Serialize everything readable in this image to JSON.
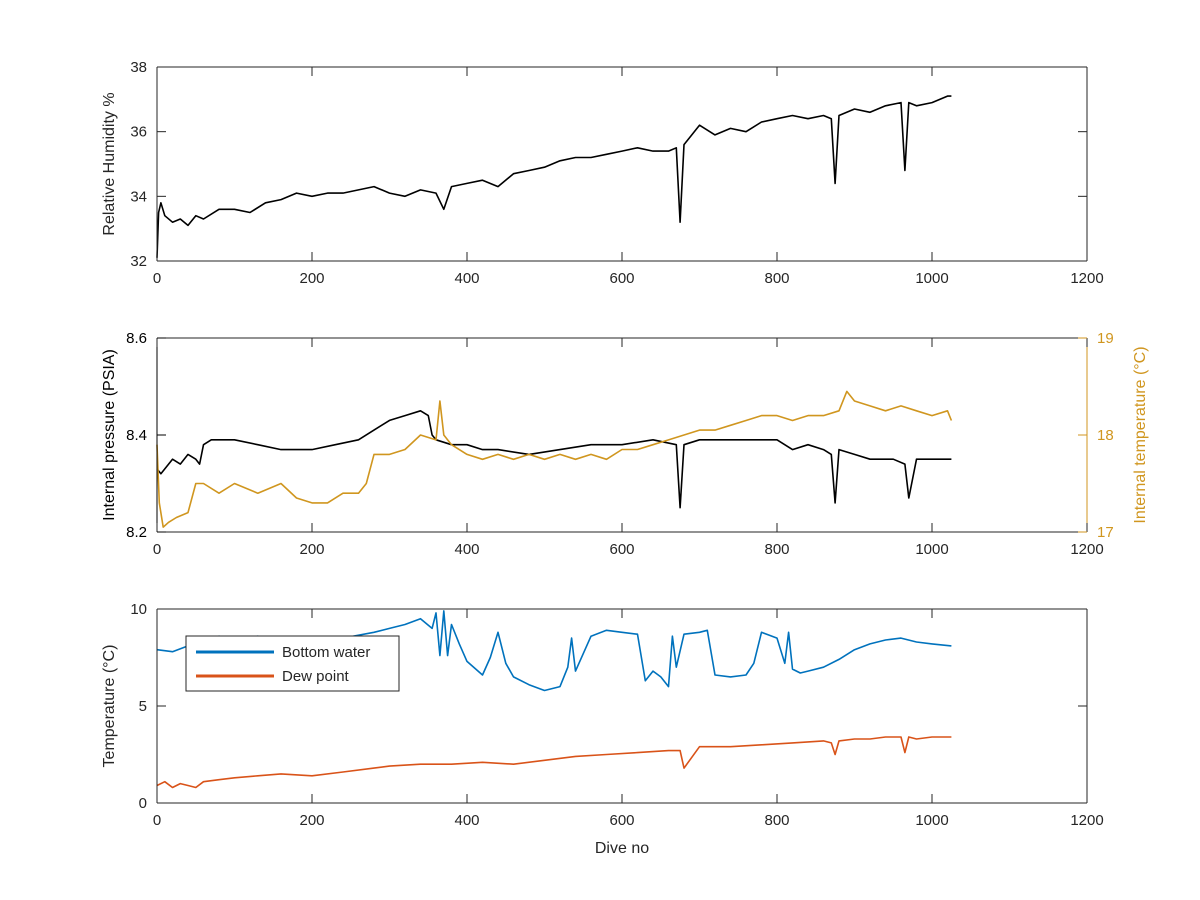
{
  "chart_data": [
    {
      "type": "line",
      "xlabel": "",
      "ylabel": "Relative Humidity %",
      "xlim": [
        0,
        1200
      ],
      "ylim": [
        32,
        38
      ],
      "xticks": [
        0,
        200,
        400,
        600,
        800,
        1000,
        1200
      ],
      "yticks": [
        32,
        34,
        36,
        38
      ],
      "grid": false,
      "series": [
        {
          "color": "#000000",
          "x": [
            0,
            2,
            5,
            10,
            20,
            30,
            40,
            50,
            60,
            80,
            100,
            120,
            140,
            160,
            180,
            200,
            220,
            240,
            260,
            280,
            300,
            320,
            340,
            360,
            370,
            380,
            400,
            420,
            440,
            460,
            480,
            500,
            520,
            540,
            560,
            580,
            600,
            620,
            640,
            660,
            670,
            675,
            680,
            690,
            700,
            720,
            740,
            760,
            780,
            800,
            820,
            840,
            860,
            870,
            875,
            880,
            900,
            920,
            940,
            960,
            965,
            970,
            980,
            1000,
            1020,
            1025
          ],
          "y": [
            32.1,
            33.5,
            33.8,
            33.4,
            33.2,
            33.3,
            33.1,
            33.4,
            33.3,
            33.6,
            33.6,
            33.5,
            33.8,
            33.9,
            34.1,
            34.0,
            34.1,
            34.1,
            34.2,
            34.3,
            34.1,
            34.0,
            34.2,
            34.1,
            33.6,
            34.3,
            34.4,
            34.5,
            34.3,
            34.7,
            34.8,
            34.9,
            35.1,
            35.2,
            35.2,
            35.3,
            35.4,
            35.5,
            35.4,
            35.4,
            35.5,
            33.2,
            35.6,
            35.9,
            36.2,
            35.9,
            36.1,
            36.0,
            36.3,
            36.4,
            36.5,
            36.4,
            36.5,
            36.4,
            34.4,
            36.5,
            36.7,
            36.6,
            36.8,
            36.9,
            34.8,
            36.9,
            36.8,
            36.9,
            37.1,
            37.1
          ]
        }
      ]
    },
    {
      "type": "line",
      "xlabel": "",
      "ylabel": "Internal pressure (PSIA)",
      "y2label": "Internal temperature (°C)",
      "xlim": [
        0,
        1200
      ],
      "ylim": [
        8.2,
        8.6
      ],
      "y2lim": [
        17,
        19
      ],
      "xticks": [
        0,
        200,
        400,
        600,
        800,
        1000,
        1200
      ],
      "yticks": [
        8.2,
        8.4,
        8.6
      ],
      "y2ticks": [
        17,
        18,
        19
      ],
      "grid": false,
      "series": [
        {
          "axis": "left",
          "color": "#000000",
          "x": [
            0,
            5,
            10,
            20,
            30,
            40,
            50,
            55,
            60,
            70,
            100,
            130,
            160,
            200,
            230,
            260,
            280,
            300,
            320,
            340,
            350,
            355,
            360,
            380,
            400,
            420,
            440,
            480,
            520,
            560,
            600,
            640,
            670,
            675,
            680,
            700,
            740,
            780,
            800,
            820,
            840,
            860,
            870,
            875,
            880,
            900,
            920,
            950,
            965,
            970,
            980,
            1000,
            1025
          ],
          "y": [
            8.33,
            8.32,
            8.33,
            8.35,
            8.34,
            8.36,
            8.35,
            8.34,
            8.38,
            8.39,
            8.39,
            8.38,
            8.37,
            8.37,
            8.38,
            8.39,
            8.41,
            8.43,
            8.44,
            8.45,
            8.44,
            8.4,
            8.39,
            8.38,
            8.38,
            8.37,
            8.37,
            8.36,
            8.37,
            8.38,
            8.38,
            8.39,
            8.38,
            8.25,
            8.38,
            8.39,
            8.39,
            8.39,
            8.39,
            8.37,
            8.38,
            8.37,
            8.36,
            8.26,
            8.37,
            8.36,
            8.35,
            8.35,
            8.34,
            8.27,
            8.35,
            8.35,
            8.35
          ]
        },
        {
          "axis": "right",
          "color": "#D0961F",
          "x": [
            0,
            3,
            8,
            15,
            25,
            40,
            50,
            60,
            80,
            100,
            130,
            160,
            180,
            200,
            220,
            240,
            260,
            270,
            280,
            300,
            320,
            340,
            360,
            365,
            370,
            380,
            400,
            420,
            440,
            460,
            480,
            500,
            520,
            540,
            560,
            580,
            600,
            620,
            640,
            660,
            680,
            700,
            720,
            740,
            760,
            780,
            800,
            820,
            840,
            860,
            880,
            890,
            900,
            920,
            940,
            960,
            980,
            1000,
            1020,
            1025
          ],
          "y": [
            17.9,
            17.3,
            17.05,
            17.1,
            17.15,
            17.2,
            17.5,
            17.5,
            17.4,
            17.5,
            17.4,
            17.5,
            17.35,
            17.3,
            17.3,
            17.4,
            17.4,
            17.5,
            17.8,
            17.8,
            17.85,
            18.0,
            17.95,
            18.35,
            18.0,
            17.9,
            17.8,
            17.75,
            17.8,
            17.75,
            17.8,
            17.75,
            17.8,
            17.75,
            17.8,
            17.75,
            17.85,
            17.85,
            17.9,
            17.95,
            18.0,
            18.05,
            18.05,
            18.1,
            18.15,
            18.2,
            18.2,
            18.15,
            18.2,
            18.2,
            18.25,
            18.45,
            18.35,
            18.3,
            18.25,
            18.3,
            18.25,
            18.2,
            18.25,
            18.15
          ]
        }
      ]
    },
    {
      "type": "line",
      "xlabel": "Dive no",
      "ylabel": "Temperature (°C)",
      "xlim": [
        0,
        1200
      ],
      "ylim": [
        0,
        10
      ],
      "xticks": [
        0,
        200,
        400,
        600,
        800,
        1000,
        1200
      ],
      "yticks": [
        0,
        5,
        10
      ],
      "grid": false,
      "legend": "top-left",
      "series": [
        {
          "name": "Bottom water",
          "color": "#0072BD",
          "x": [
            0,
            20,
            40,
            60,
            80,
            100,
            130,
            160,
            200,
            240,
            280,
            300,
            320,
            340,
            355,
            360,
            365,
            370,
            375,
            380,
            390,
            400,
            420,
            430,
            440,
            450,
            460,
            480,
            500,
            520,
            530,
            535,
            540,
            560,
            580,
            600,
            620,
            630,
            640,
            650,
            660,
            665,
            670,
            680,
            700,
            710,
            720,
            740,
            760,
            770,
            780,
            800,
            810,
            815,
            820,
            830,
            840,
            860,
            880,
            900,
            920,
            940,
            960,
            980,
            1000,
            1025
          ],
          "y": [
            7.9,
            7.8,
            8.1,
            8.4,
            8.6,
            8.5,
            8.6,
            8.4,
            8.4,
            8.5,
            8.8,
            9.0,
            9.2,
            9.5,
            9.0,
            9.8,
            7.6,
            9.9,
            7.6,
            9.2,
            8.2,
            7.3,
            6.6,
            7.5,
            8.8,
            7.2,
            6.5,
            6.1,
            5.8,
            6.0,
            7.0,
            8.5,
            6.8,
            8.6,
            8.9,
            8.8,
            8.7,
            6.3,
            6.8,
            6.5,
            6.0,
            8.6,
            7.0,
            8.7,
            8.8,
            8.9,
            6.6,
            6.5,
            6.6,
            7.2,
            8.8,
            8.5,
            7.2,
            8.8,
            6.9,
            6.7,
            6.8,
            7.0,
            7.4,
            7.9,
            8.2,
            8.4,
            8.5,
            8.3,
            8.2,
            8.1
          ]
        },
        {
          "name": "Dew point",
          "color": "#D95319",
          "x": [
            0,
            10,
            20,
            30,
            40,
            50,
            60,
            80,
            100,
            130,
            160,
            200,
            240,
            280,
            300,
            340,
            380,
            420,
            460,
            500,
            540,
            580,
            620,
            660,
            675,
            680,
            700,
            740,
            780,
            820,
            860,
            870,
            875,
            880,
            900,
            920,
            940,
            960,
            965,
            970,
            980,
            1000,
            1025
          ],
          "y": [
            0.9,
            1.1,
            0.8,
            1.0,
            0.9,
            0.8,
            1.1,
            1.2,
            1.3,
            1.4,
            1.5,
            1.4,
            1.6,
            1.8,
            1.9,
            2.0,
            2.0,
            2.1,
            2.0,
            2.2,
            2.4,
            2.5,
            2.6,
            2.7,
            2.7,
            1.8,
            2.9,
            2.9,
            3.0,
            3.1,
            3.2,
            3.1,
            2.5,
            3.2,
            3.3,
            3.3,
            3.4,
            3.4,
            2.6,
            3.4,
            3.3,
            3.4,
            3.4
          ]
        }
      ]
    }
  ]
}
